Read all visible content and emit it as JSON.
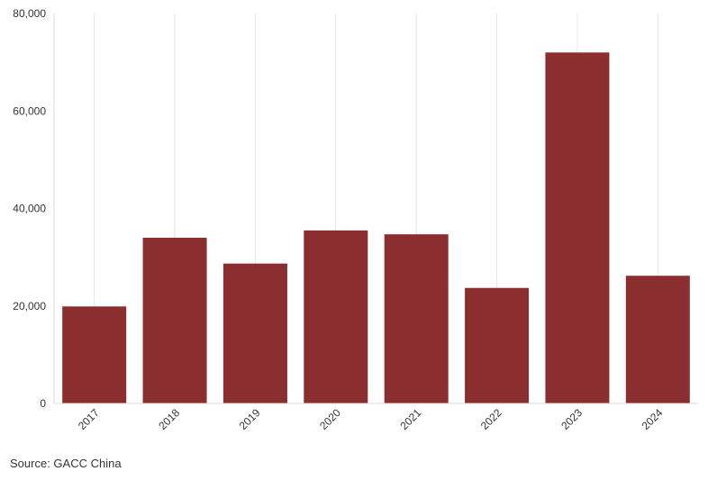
{
  "chart_data": {
    "type": "bar",
    "categories": [
      "2017",
      "2018",
      "2019",
      "2020",
      "2021",
      "2022",
      "2023",
      "2024"
    ],
    "values": [
      19900,
      34000,
      28700,
      35500,
      34700,
      23700,
      72000,
      26200
    ],
    "ylim": [
      0,
      80000
    ],
    "yticks": [
      "0",
      "20,000",
      "40,000",
      "60,000",
      "80,000"
    ],
    "ytick_values": [
      0,
      20000,
      40000,
      60000,
      80000
    ],
    "xlabel": "",
    "ylabel": "",
    "grid": "vertical",
    "bar_color": "#8b2e2f"
  },
  "source": "Source: GACC China"
}
